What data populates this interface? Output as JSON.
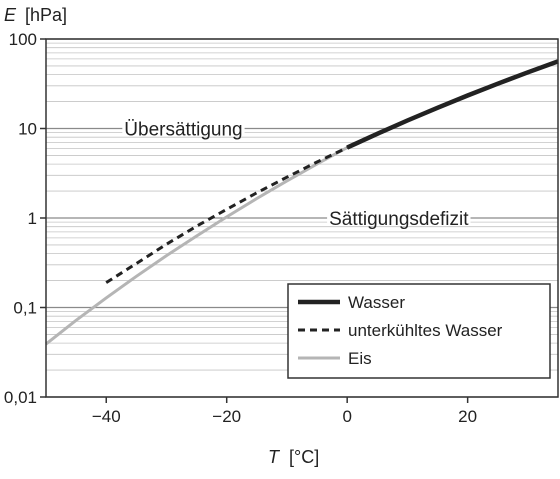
{
  "chart_data": {
    "type": "line",
    "ylabel": {
      "symbol": "E",
      "unit": "[hPa]"
    },
    "xlabel": {
      "symbol": "T",
      "unit": "[°C]"
    },
    "xlim": [
      -50,
      35
    ],
    "ylim": [
      0.01,
      100
    ],
    "yscale": "log",
    "grid": "horizontal minor and major lines",
    "xticks": [
      {
        "value": -40,
        "label": "−40"
      },
      {
        "value": -20,
        "label": "−20"
      },
      {
        "value": 0,
        "label": "0"
      },
      {
        "value": 20,
        "label": "20"
      }
    ],
    "yticks": [
      {
        "value": 0.01,
        "label": "0,01"
      },
      {
        "value": 0.1,
        "label": "0,1"
      },
      {
        "value": 1,
        "label": "1"
      },
      {
        "value": 10,
        "label": "10"
      },
      {
        "value": 100,
        "label": "100"
      }
    ],
    "annotations": [
      {
        "text": "Übersättigung",
        "x": -37,
        "y": 10
      },
      {
        "text": "Sättigungsdefizit",
        "x": -3,
        "y": 1
      }
    ],
    "legend_position": "bottom-right",
    "series": [
      {
        "name": "Wasser",
        "style": "solid-thick",
        "color": "#222222",
        "x": [
          0,
          5,
          10,
          15,
          20,
          25,
          30,
          35
        ],
        "y": [
          6.11,
          8.72,
          12.27,
          17.04,
          23.37,
          31.67,
          42.43,
          56.2
        ]
      },
      {
        "name": "unterkühltes Wasser",
        "style": "dashed",
        "color": "#222222",
        "x": [
          -40,
          -35,
          -30,
          -25,
          -20,
          -15,
          -10,
          -5,
          0
        ],
        "y": [
          0.19,
          0.31,
          0.51,
          0.81,
          1.25,
          1.91,
          2.86,
          4.22,
          6.11
        ]
      },
      {
        "name": "Eis",
        "style": "solid-light",
        "color": "#b5b5b5",
        "x": [
          -50,
          -45,
          -40,
          -35,
          -30,
          -25,
          -20,
          -15,
          -10,
          -5,
          0
        ],
        "y": [
          0.039,
          0.072,
          0.128,
          0.223,
          0.38,
          0.63,
          1.03,
          1.65,
          2.6,
          4.02,
          6.11
        ]
      }
    ]
  }
}
